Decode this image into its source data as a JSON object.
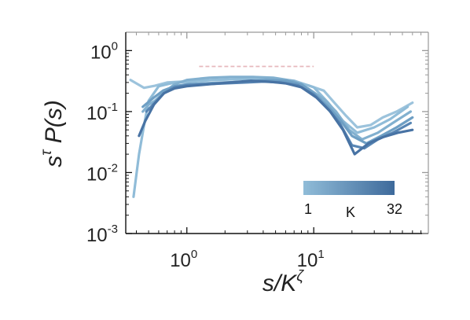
{
  "chart_data": {
    "type": "line",
    "xscale": "log",
    "yscale": "log",
    "xlim": [
      0.33,
      80
    ],
    "ylim": [
      0.001,
      2
    ],
    "xticks": [
      {
        "value": 1,
        "base": "10",
        "exp": "0"
      },
      {
        "value": 10,
        "base": "10",
        "exp": "1"
      }
    ],
    "yticks": [
      {
        "value": 1,
        "base": "10",
        "exp": "0"
      },
      {
        "value": 0.1,
        "base": "10",
        "exp": "-1"
      },
      {
        "value": 0.01,
        "base": "10",
        "exp": "-2"
      },
      {
        "value": 0.001,
        "base": "10",
        "exp": "-3"
      }
    ],
    "xlabel": {
      "main": "s/K",
      "sup": "ζ"
    },
    "ylabel": {
      "main": "s",
      "sup": "τ",
      "rest": " P(s)"
    },
    "grid": false,
    "reference_line": {
      "style": "dashed",
      "color": "#e7b9bd",
      "x": [
        1.25,
        10
      ],
      "y": [
        0.55,
        0.55
      ]
    },
    "colorbar": {
      "label": "K",
      "min_label": "1",
      "max_label": "32",
      "color_low": "#90bcd8",
      "color_high": "#3e6a9b"
    },
    "series": [
      {
        "color": "#9cc3dc",
        "x": [
          0.36,
          0.46,
          0.56,
          0.7,
          0.9,
          1.2,
          1.7,
          2.5,
          3.5,
          5,
          7,
          9,
          12,
          15,
          18,
          22,
          28,
          35,
          45,
          60
        ],
        "y": [
          0.33,
          0.245,
          0.265,
          0.3,
          0.31,
          0.32,
          0.33,
          0.34,
          0.35,
          0.33,
          0.3,
          0.27,
          0.22,
          0.13,
          0.085,
          0.055,
          0.06,
          0.08,
          0.1,
          0.14
        ]
      },
      {
        "color": "#90bcd8",
        "x": [
          0.38,
          0.42,
          0.46,
          0.5,
          0.6,
          0.8,
          1.1,
          1.6,
          2.4,
          3.5,
          5,
          7,
          10,
          13,
          17,
          22,
          30,
          40,
          55
        ],
        "y": [
          0.004,
          0.02,
          0.06,
          0.15,
          0.26,
          0.3,
          0.31,
          0.33,
          0.34,
          0.35,
          0.34,
          0.32,
          0.25,
          0.14,
          0.07,
          0.045,
          0.055,
          0.075,
          0.12
        ]
      },
      {
        "color": "#82b0cf",
        "x": [
          0.45,
          0.5,
          0.56,
          0.65,
          0.8,
          1.0,
          1.5,
          2.2,
          3.3,
          4.8,
          6.8,
          9,
          12,
          15,
          19,
          24,
          32,
          42,
          58
        ],
        "y": [
          0.1,
          0.13,
          0.15,
          0.2,
          0.28,
          0.33,
          0.36,
          0.37,
          0.37,
          0.36,
          0.32,
          0.24,
          0.16,
          0.1,
          0.05,
          0.035,
          0.045,
          0.065,
          0.1
        ]
      },
      {
        "color": "#6e9fc4",
        "x": [
          0.45,
          0.55,
          0.65,
          0.8,
          1.0,
          1.4,
          2.0,
          3.0,
          4.2,
          6,
          8,
          10,
          13,
          16,
          20,
          26,
          34,
          45,
          60
        ],
        "y": [
          0.12,
          0.17,
          0.22,
          0.26,
          0.28,
          0.29,
          0.3,
          0.31,
          0.33,
          0.32,
          0.28,
          0.2,
          0.12,
          0.075,
          0.04,
          0.03,
          0.04,
          0.055,
          0.08
        ]
      },
      {
        "color": "#5886b4",
        "x": [
          0.48,
          0.56,
          0.66,
          0.8,
          1.0,
          1.4,
          2.0,
          2.9,
          4.0,
          5.5,
          7.5,
          10,
          13,
          16,
          20,
          25,
          32,
          42,
          58
        ],
        "y": [
          0.1,
          0.14,
          0.2,
          0.25,
          0.27,
          0.28,
          0.29,
          0.3,
          0.31,
          0.3,
          0.27,
          0.19,
          0.11,
          0.065,
          0.028,
          0.025,
          0.035,
          0.045,
          0.065
        ]
      },
      {
        "color": "#4873a4",
        "x": [
          0.42,
          0.47,
          0.55,
          0.66,
          0.8,
          1.0,
          1.5,
          2.2,
          3.2,
          4.4,
          6,
          8,
          10.5,
          13.5,
          17,
          21,
          27,
          35,
          46,
          60
        ],
        "y": [
          0.04,
          0.07,
          0.13,
          0.2,
          0.24,
          0.26,
          0.28,
          0.3,
          0.32,
          0.31,
          0.29,
          0.25,
          0.17,
          0.1,
          0.05,
          0.02,
          0.03,
          0.038,
          0.045,
          0.05
        ]
      }
    ]
  }
}
